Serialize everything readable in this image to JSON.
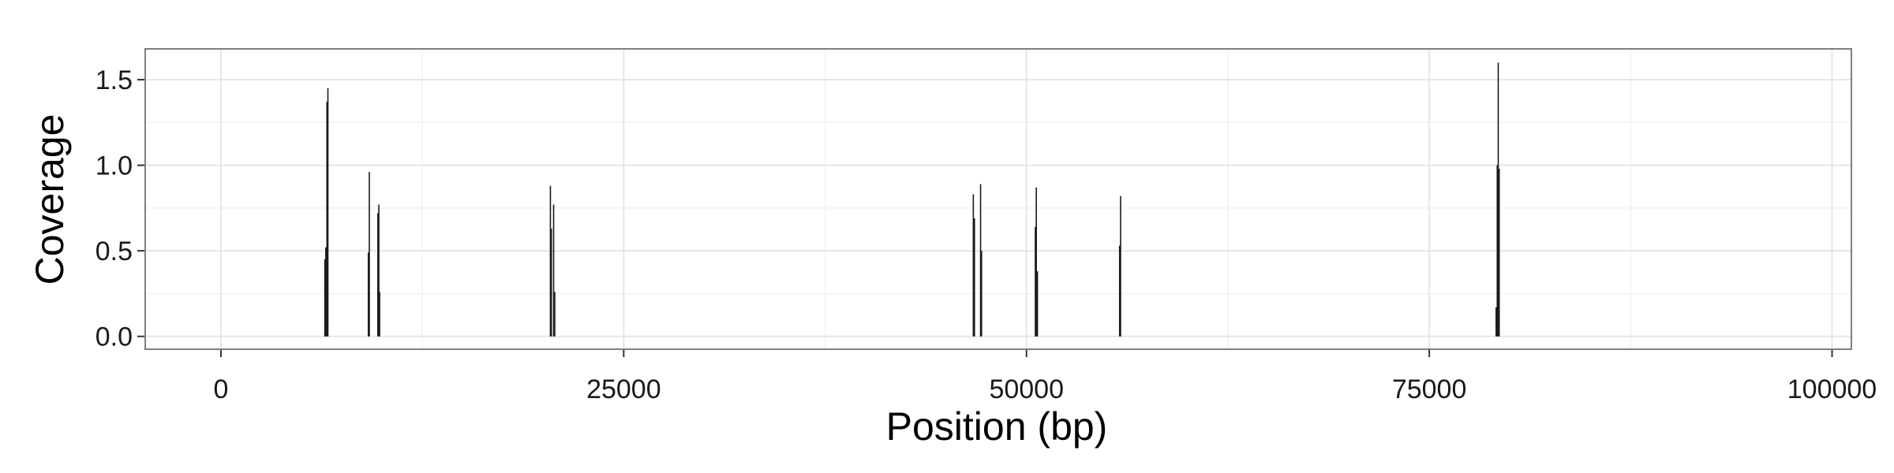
{
  "chart_data": {
    "type": "bar",
    "title": "",
    "xlabel": "Position (bp)",
    "ylabel": "Coverage",
    "xlim": [
      -4700,
      101200
    ],
    "ylim": [
      -0.075,
      1.68
    ],
    "x_ticks": [
      0,
      25000,
      50000,
      75000,
      100000
    ],
    "y_ticks": [
      0.0,
      0.5,
      1.0,
      1.5
    ],
    "x_tick_labels": [
      "0",
      "25000",
      "50000",
      "75000",
      "100000"
    ],
    "y_tick_labels": [
      "0.0",
      "0.5",
      "1.0",
      "1.5"
    ],
    "grid": true,
    "series": [
      {
        "points": [
          {
            "x": 6450,
            "y": 0.45
          },
          {
            "x": 6510,
            "y": 0.52
          },
          {
            "x": 6580,
            "y": 1.37
          },
          {
            "x": 6640,
            "y": 1.45
          },
          {
            "x": 9150,
            "y": 0.49
          },
          {
            "x": 9210,
            "y": 0.96
          },
          {
            "x": 9740,
            "y": 0.72
          },
          {
            "x": 9800,
            "y": 0.77
          },
          {
            "x": 9850,
            "y": 0.26
          },
          {
            "x": 20450,
            "y": 0.88
          },
          {
            "x": 20510,
            "y": 0.63
          },
          {
            "x": 20650,
            "y": 0.77
          },
          {
            "x": 20720,
            "y": 0.26
          },
          {
            "x": 46700,
            "y": 0.83
          },
          {
            "x": 46770,
            "y": 0.69
          },
          {
            "x": 47150,
            "y": 0.89
          },
          {
            "x": 47210,
            "y": 0.5
          },
          {
            "x": 50550,
            "y": 0.64
          },
          {
            "x": 50610,
            "y": 0.87
          },
          {
            "x": 50680,
            "y": 0.38
          },
          {
            "x": 55780,
            "y": 0.53
          },
          {
            "x": 55840,
            "y": 0.82
          },
          {
            "x": 79150,
            "y": 0.17
          },
          {
            "x": 79220,
            "y": 1.0
          },
          {
            "x": 79280,
            "y": 1.6
          },
          {
            "x": 79340,
            "y": 0.98
          }
        ]
      }
    ],
    "colors": {
      "panel_border": "#7f7f7f",
      "grid_major": "#e6e6e6",
      "grid_minor": "#f2f2f2",
      "bars": "#1a1a1a",
      "ticks": "#333333"
    }
  }
}
